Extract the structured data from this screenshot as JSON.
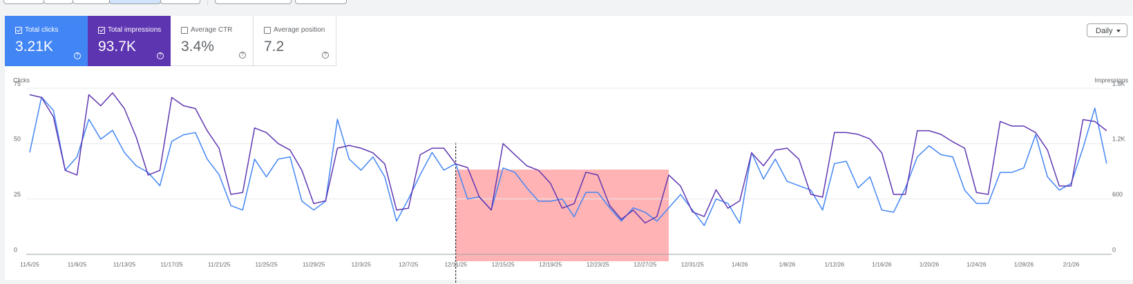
{
  "metrics": [
    {
      "label": "Total clicks",
      "value": "3.21K"
    },
    {
      "label": "Total impressions",
      "value": "93.7K"
    },
    {
      "label": "Average CTR",
      "value": "3.4%"
    },
    {
      "label": "Average position",
      "value": "7.2"
    }
  ],
  "period_selector": "Daily",
  "chart_data": {
    "type": "line",
    "y_label": "Clicks",
    "y2_label": "Impressions",
    "categories": [
      "11/5/25",
      null,
      null,
      null,
      "11/9/25",
      null,
      null,
      null,
      "11/13/25",
      null,
      null,
      null,
      "11/17/25",
      null,
      null,
      null,
      "11/21/25",
      null,
      null,
      null,
      "11/25/25",
      null,
      null,
      null,
      "11/29/25",
      null,
      null,
      null,
      "12/3/25",
      null,
      null,
      null,
      "12/7/25",
      null,
      null,
      null,
      "12/11/25",
      null,
      null,
      null,
      "12/15/25",
      null,
      null,
      null,
      "12/19/25",
      null,
      null,
      null,
      "12/23/25",
      null,
      null,
      null,
      "12/27/25",
      null,
      null,
      null,
      "12/31/25",
      null,
      null,
      null,
      "1/4/26",
      null,
      null,
      null,
      "1/8/26",
      null,
      null,
      null,
      "1/12/26",
      null,
      null,
      null,
      "1/16/26",
      null,
      null,
      null,
      "1/20/26",
      null,
      null,
      null,
      "1/24/26",
      null,
      null,
      null,
      "1/28/26",
      null,
      null,
      null,
      "2/1/26",
      null,
      null,
      null
    ],
    "series": [
      {
        "name": "Total clicks",
        "color": "#4285f4",
        "axis": "y",
        "values": [
          46,
          71,
          65,
          38,
          44,
          61,
          52,
          56,
          46,
          40,
          37,
          31,
          51,
          54,
          55,
          43,
          36,
          22,
          20,
          43,
          35,
          43,
          44,
          24,
          20,
          24,
          61,
          43,
          38,
          44,
          35,
          15,
          25,
          36,
          46,
          38,
          41,
          25,
          26,
          20,
          39,
          37,
          30,
          24,
          24,
          25,
          17,
          28,
          28,
          21,
          15,
          21,
          19,
          15,
          21,
          27,
          20,
          13,
          25,
          23,
          14,
          46,
          34,
          43,
          33,
          31,
          29,
          20,
          41,
          42,
          30,
          35,
          20,
          19,
          30,
          44,
          49,
          45,
          44,
          29,
          23,
          23,
          37,
          37,
          39,
          54,
          35,
          29,
          32,
          48,
          66,
          41
        ]
      },
      {
        "name": "Total impressions",
        "color": "#5e35b1",
        "axis": "y2",
        "values": [
          1730,
          1700,
          1490,
          910,
          860,
          1730,
          1610,
          1750,
          1580,
          1270,
          860,
          910,
          1700,
          1610,
          1580,
          1340,
          1150,
          650,
          670,
          1370,
          1320,
          1200,
          1130,
          910,
          550,
          580,
          1150,
          1180,
          1150,
          1100,
          980,
          480,
          500,
          1080,
          1150,
          1150,
          980,
          940,
          620,
          480,
          1200,
          1080,
          960,
          910,
          770,
          500,
          550,
          890,
          860,
          530,
          380,
          480,
          340,
          410,
          860,
          740,
          460,
          410,
          700,
          500,
          580,
          1100,
          960,
          1130,
          1150,
          1030,
          650,
          620,
          1320,
          1320,
          1300,
          1250,
          1100,
          650,
          650,
          1340,
          1340,
          1300,
          1220,
          1150,
          670,
          650,
          1440,
          1390,
          1390,
          1320,
          1130,
          740,
          740,
          1460,
          1440,
          1340
        ]
      }
    ],
    "ylim": [
      0,
      75
    ],
    "yticks": [
      0,
      25,
      50,
      75
    ],
    "y2lim": [
      0,
      1800
    ],
    "y2ticks": [
      0,
      600,
      {
        "value": 1200,
        "label": "1.2K"
      },
      {
        "value": 1800,
        "label": "1.8K"
      }
    ],
    "grid": true
  }
}
